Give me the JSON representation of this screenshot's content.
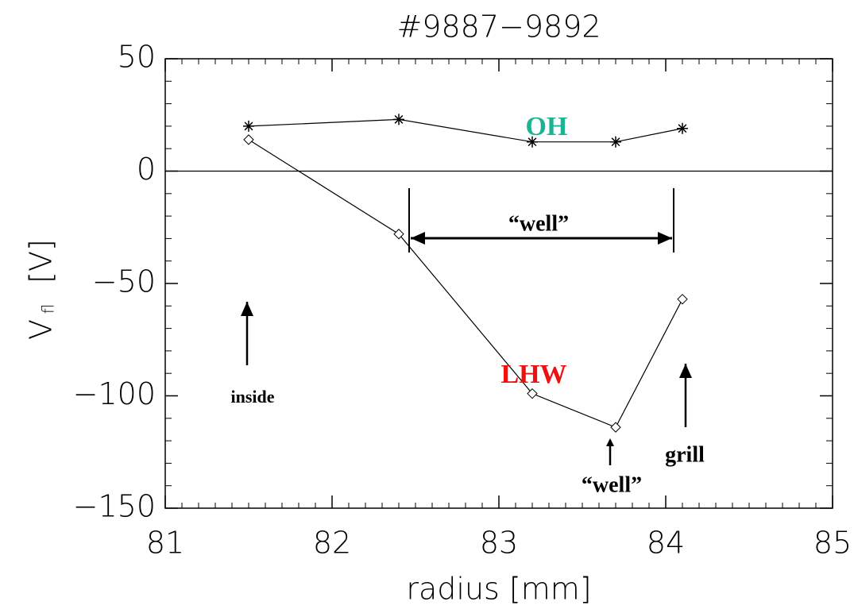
{
  "chart_data": {
    "type": "line",
    "title": "#9887−9892",
    "xlabel": "radius [mm]",
    "ylabel": "V",
    "ylabel_sub": "fl",
    "ylabel_unit": "[V]",
    "xlim": [
      81,
      85
    ],
    "xticks": [
      81,
      82,
      83,
      84,
      85
    ],
    "ylim": [
      -150,
      50
    ],
    "yticks": [
      {
        "value": -150,
        "label": "−150"
      },
      {
        "value": -100,
        "label": "−100"
      },
      {
        "value": -50,
        "label": "−50"
      },
      0,
      50
    ],
    "zero_line": true,
    "series": [
      {
        "name": "OH",
        "color": "#000000",
        "label_color": "#1ab394",
        "marker": "star",
        "x": [
          81.5,
          82.4,
          83.2,
          83.7,
          84.1
        ],
        "values": [
          20,
          23,
          13,
          13,
          19
        ]
      },
      {
        "name": "LHW",
        "color": "#000000",
        "label_color": "#ee1111",
        "marker": "diamond",
        "x": [
          81.5,
          82.4,
          83.2,
          83.7,
          84.1
        ],
        "values": [
          14,
          -28,
          -99,
          -114,
          -57
        ]
      }
    ],
    "annotations": [
      "“well”",
      "inside",
      "“well”",
      "grill"
    ]
  }
}
